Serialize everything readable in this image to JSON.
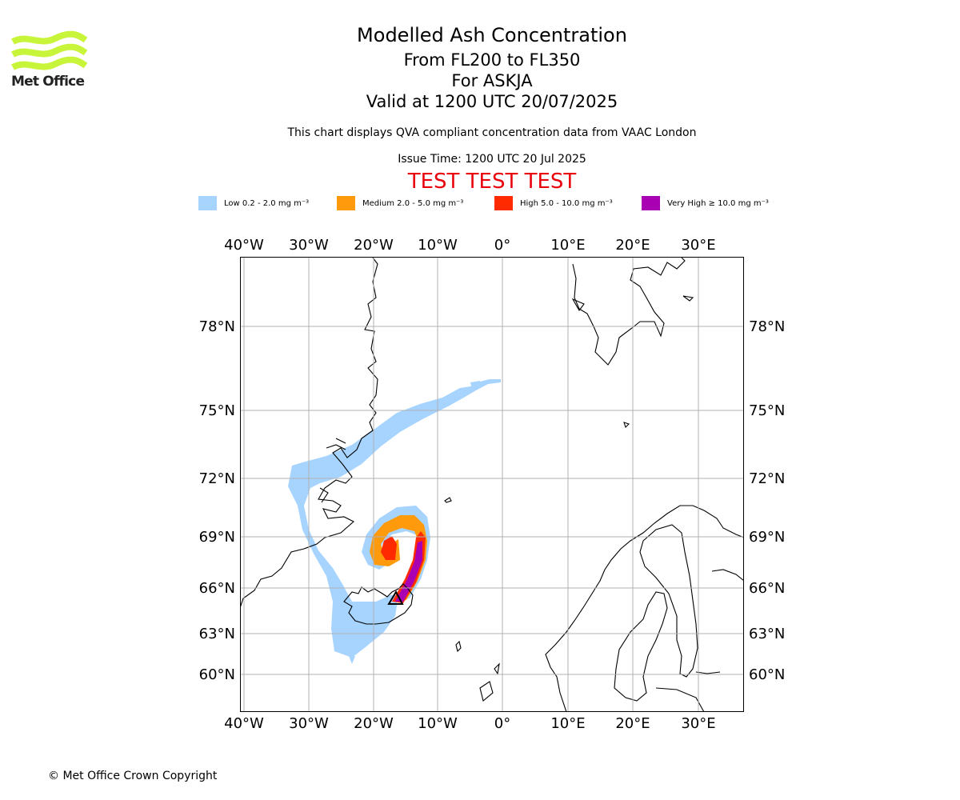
{
  "brand": {
    "name": "Met Office",
    "logo_color": "#c8f53a"
  },
  "header": {
    "title": "Modelled Ash Concentration",
    "levels": "From FL200 to FL350",
    "volcano": "For ASKJA",
    "valid": "Valid at 1200 UTC 20/07/2025",
    "subtitle": "This chart displays QVA compliant concentration data from VAAC London",
    "issue_time": "Issue Time: 1200 UTC 20 Jul 2025",
    "test_banner": "TEST TEST TEST",
    "test_color": "#e8000b"
  },
  "legend": [
    {
      "label": "Low 0.2 - 2.0 mg m⁻³",
      "color": "#a6d4ff"
    },
    {
      "label": "Medium 2.0 - 5.0 mg m⁻³",
      "color": "#ff9a0c"
    },
    {
      "label": "High 5.0 - 10.0 mg m⁻³",
      "color": "#ff2a00"
    },
    {
      "label": "Very High ≥ 10.0 mg m⁻³",
      "color": "#aa00b4"
    }
  ],
  "map": {
    "longitude_labels": [
      "40°W",
      "30°W",
      "20°W",
      "10°W",
      "0°",
      "10°E",
      "20°E",
      "30°E"
    ],
    "latitude_labels": [
      "78°N",
      "75°N",
      "72°N",
      "69°N",
      "66°N",
      "63°N",
      "60°N"
    ],
    "grid": true,
    "grid_color": "#b0b0b0",
    "volcano_marker": "triangle"
  },
  "footer": {
    "copyright": "© Met Office Crown Copyright"
  }
}
